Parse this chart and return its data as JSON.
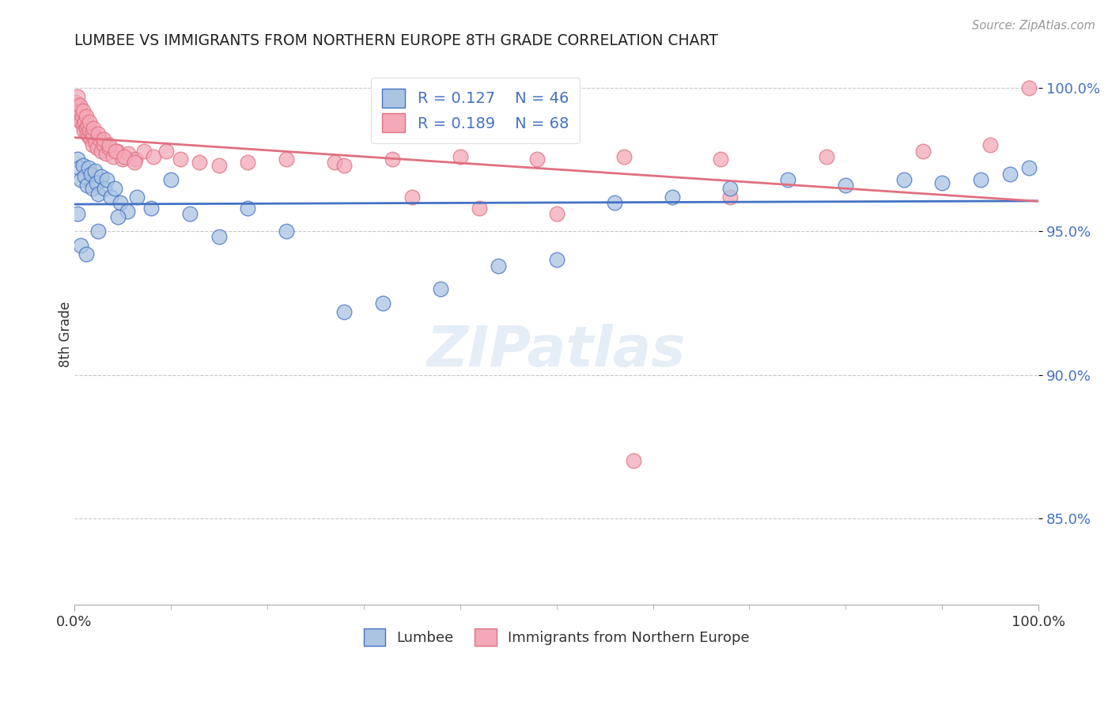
{
  "title": "LUMBEE VS IMMIGRANTS FROM NORTHERN EUROPE 8TH GRADE CORRELATION CHART",
  "source": "Source: ZipAtlas.com",
  "ylabel": "8th Grade",
  "xlim": [
    0.0,
    1.0
  ],
  "ylim": [
    0.82,
    1.008
  ],
  "yticks": [
    0.85,
    0.9,
    0.95,
    1.0
  ],
  "ytick_labels": [
    "85.0%",
    "90.0%",
    "95.0%",
    "100.0%"
  ],
  "lumbee_R": 0.127,
  "lumbee_N": 46,
  "immigrants_R": 0.189,
  "immigrants_N": 68,
  "lumbee_color": "#aac4e2",
  "immigrants_color": "#f4a8b8",
  "lumbee_line_color": "#4472c4",
  "immigrants_line_color": "#e07080",
  "background_color": "#ffffff",
  "grid_color": "#c8c8c8",
  "title_color": "#222222",
  "source_color": "#999999",
  "legend_label_lumbee": "Lumbee",
  "legend_label_immigrants": "Immigrants from Northern Europe",
  "lumbee_x": [
    0.003,
    0.005,
    0.007,
    0.009,
    0.011,
    0.013,
    0.015,
    0.017,
    0.019,
    0.021,
    0.023,
    0.025,
    0.028,
    0.031,
    0.034,
    0.038,
    0.042,
    0.048,
    0.055,
    0.065,
    0.08,
    0.1,
    0.12,
    0.15,
    0.18,
    0.22,
    0.28,
    0.32,
    0.38,
    0.44,
    0.5,
    0.56,
    0.62,
    0.68,
    0.74,
    0.8,
    0.86,
    0.9,
    0.94,
    0.97,
    0.99,
    0.003,
    0.007,
    0.012,
    0.025,
    0.045
  ],
  "lumbee_y": [
    0.975,
    0.972,
    0.968,
    0.973,
    0.969,
    0.966,
    0.972,
    0.97,
    0.965,
    0.971,
    0.967,
    0.963,
    0.969,
    0.965,
    0.968,
    0.962,
    0.965,
    0.96,
    0.957,
    0.962,
    0.958,
    0.968,
    0.956,
    0.948,
    0.958,
    0.95,
    0.922,
    0.925,
    0.93,
    0.938,
    0.94,
    0.96,
    0.962,
    0.965,
    0.968,
    0.966,
    0.968,
    0.967,
    0.968,
    0.97,
    0.972,
    0.956,
    0.945,
    0.942,
    0.95,
    0.955
  ],
  "immigrants_x": [
    0.001,
    0.002,
    0.003,
    0.004,
    0.005,
    0.006,
    0.007,
    0.008,
    0.009,
    0.01,
    0.011,
    0.012,
    0.013,
    0.014,
    0.015,
    0.016,
    0.017,
    0.018,
    0.019,
    0.02,
    0.022,
    0.024,
    0.026,
    0.028,
    0.03,
    0.033,
    0.036,
    0.04,
    0.044,
    0.05,
    0.056,
    0.063,
    0.072,
    0.082,
    0.095,
    0.11,
    0.13,
    0.15,
    0.18,
    0.22,
    0.27,
    0.33,
    0.4,
    0.48,
    0.57,
    0.67,
    0.78,
    0.88,
    0.95,
    0.99,
    0.003,
    0.006,
    0.009,
    0.012,
    0.016,
    0.02,
    0.025,
    0.03,
    0.036,
    0.043,
    0.052,
    0.062,
    0.28,
    0.35,
    0.42,
    0.5,
    0.58,
    0.68
  ],
  "immigrants_y": [
    0.995,
    0.993,
    0.991,
    0.994,
    0.989,
    0.992,
    0.988,
    0.99,
    0.987,
    0.985,
    0.988,
    0.986,
    0.984,
    0.987,
    0.983,
    0.985,
    0.982,
    0.984,
    0.98,
    0.983,
    0.981,
    0.979,
    0.982,
    0.978,
    0.98,
    0.977,
    0.979,
    0.976,
    0.978,
    0.975,
    0.977,
    0.975,
    0.978,
    0.976,
    0.978,
    0.975,
    0.974,
    0.973,
    0.974,
    0.975,
    0.974,
    0.975,
    0.976,
    0.975,
    0.976,
    0.975,
    0.976,
    0.978,
    0.98,
    1.0,
    0.997,
    0.994,
    0.992,
    0.99,
    0.988,
    0.986,
    0.984,
    0.982,
    0.98,
    0.978,
    0.976,
    0.974,
    0.973,
    0.962,
    0.958,
    0.956,
    0.87,
    0.962
  ]
}
